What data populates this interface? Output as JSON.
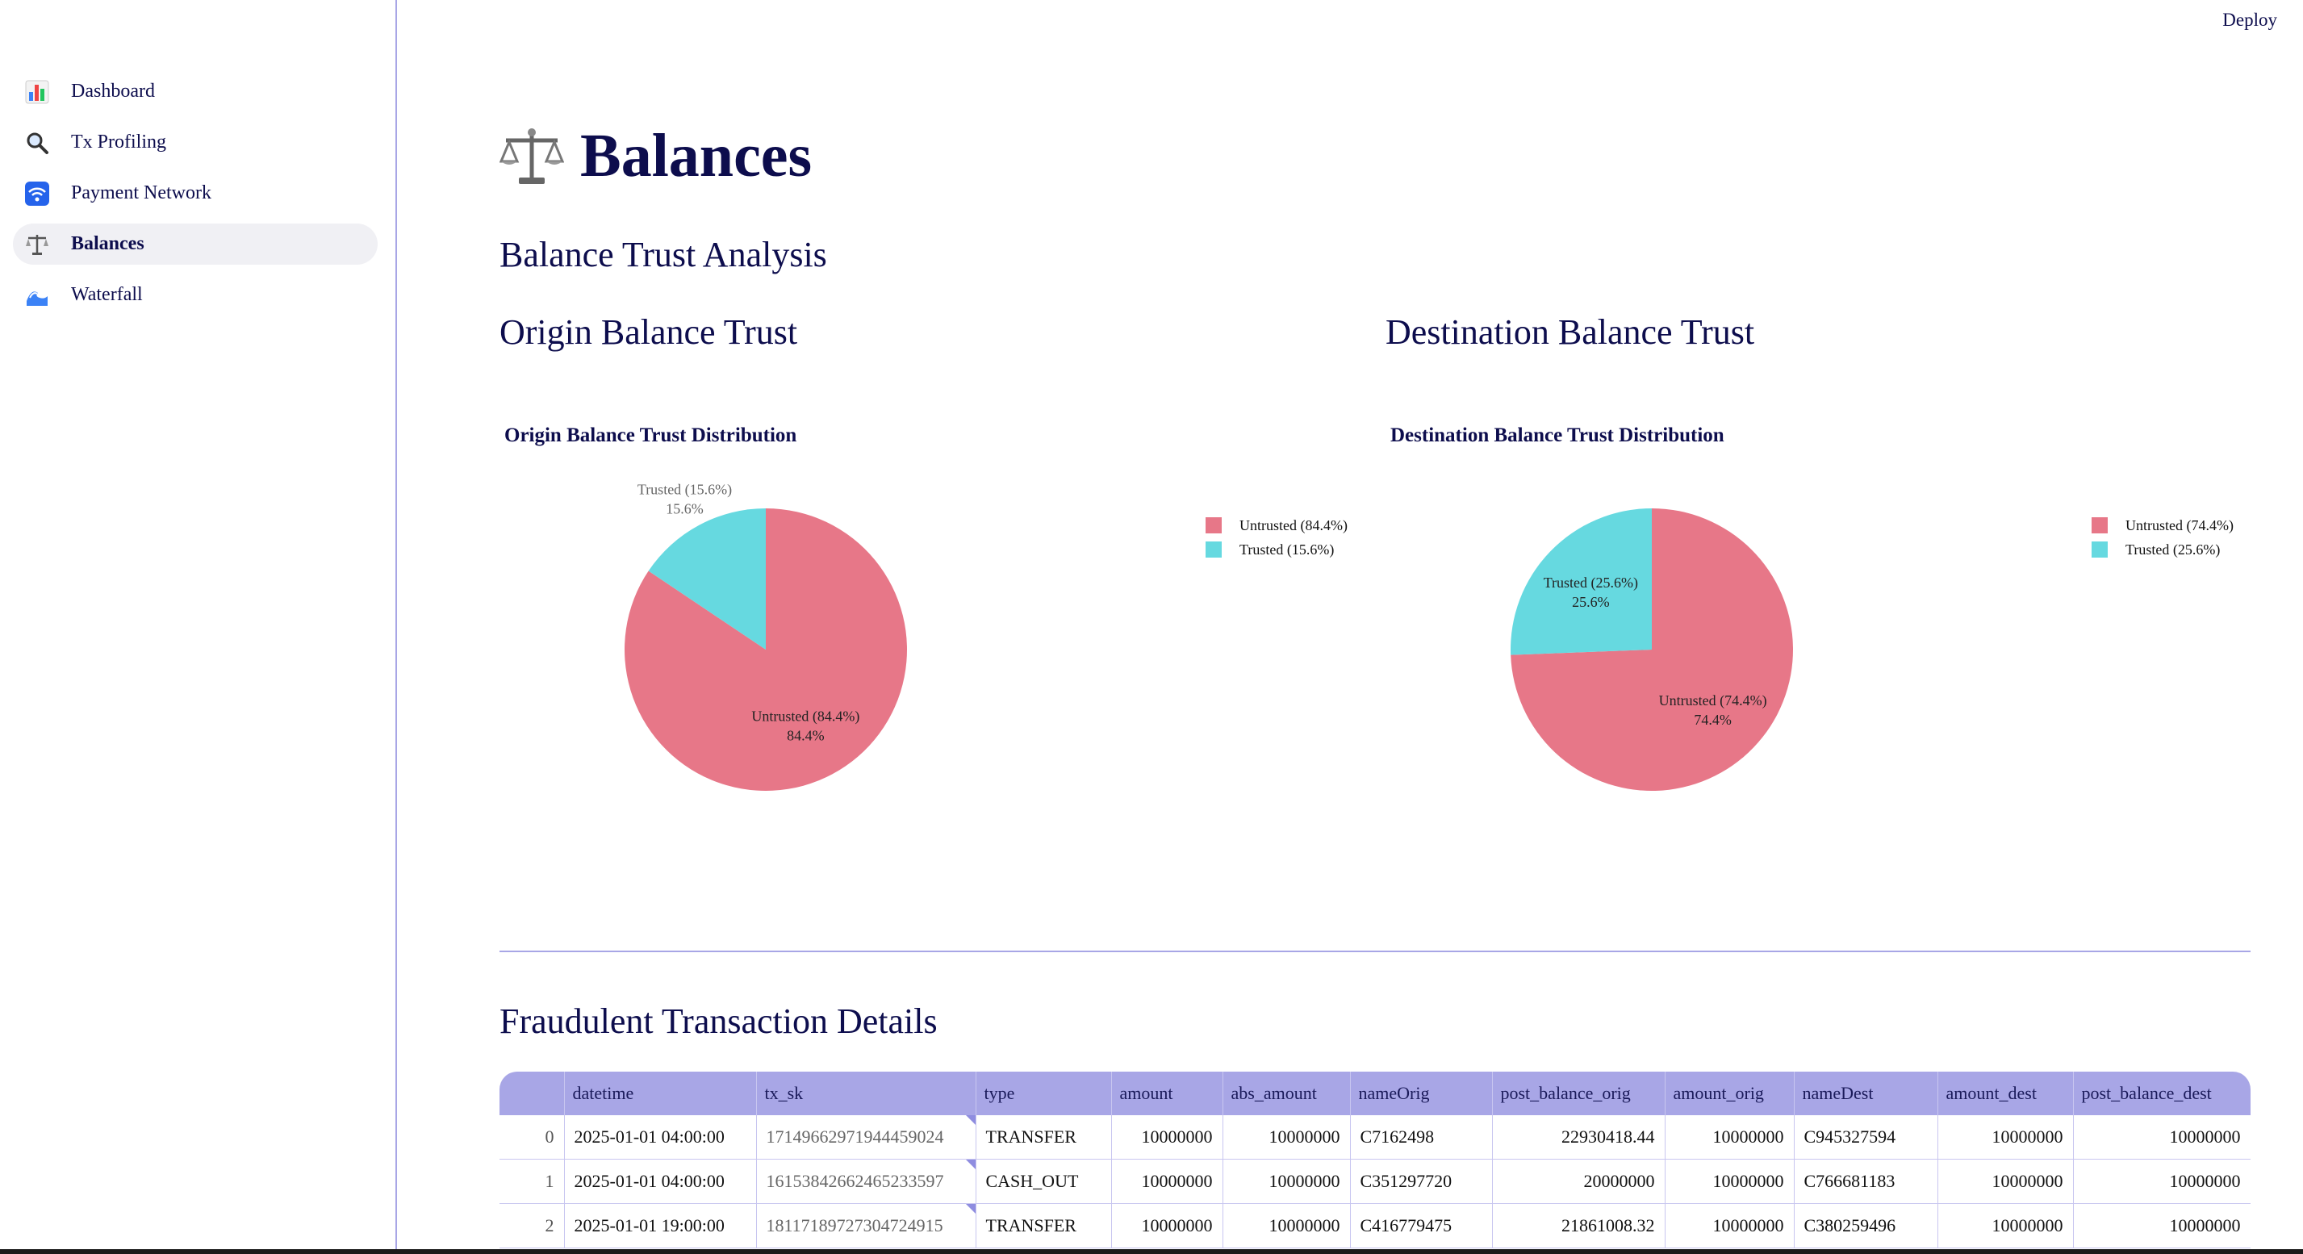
{
  "deploy_label": "Deploy",
  "sidebar": {
    "items": [
      {
        "label": "Dashboard",
        "icon": "bar-chart-icon",
        "active": false
      },
      {
        "label": "Tx Profiling",
        "icon": "magnifier-icon",
        "active": false
      },
      {
        "label": "Payment Network",
        "icon": "wireless-icon",
        "active": false
      },
      {
        "label": "Balances",
        "icon": "scales-icon",
        "active": true
      },
      {
        "label": "Waterfall",
        "icon": "wave-icon",
        "active": false
      }
    ]
  },
  "page": {
    "title": "Balances",
    "subtitle": "Balance Trust Analysis",
    "origin_heading": "Origin Balance Trust",
    "destination_heading": "Destination Balance Trust",
    "table_heading": "Fraudulent Transaction Details"
  },
  "colors": {
    "untrusted": "#e77788",
    "trusted": "#66d9e0",
    "accent": "#a8a6e6",
    "text": "#0d0d4d"
  },
  "chart_data": [
    {
      "type": "pie",
      "title": "Origin Balance Trust Distribution",
      "labels": [
        "Untrusted (84.4%)",
        "Trusted (15.6%)"
      ],
      "values": [
        84.4,
        15.6
      ],
      "pct_labels": [
        "84.4%",
        "15.6%"
      ],
      "legend": [
        "Untrusted (84.4%)",
        "Trusted (15.6%)"
      ],
      "legend_placement": "right"
    },
    {
      "type": "pie",
      "title": "Destination Balance Trust Distribution",
      "labels": [
        "Untrusted (74.4%)",
        "Trusted (25.6%)"
      ],
      "values": [
        74.4,
        25.6
      ],
      "pct_labels": [
        "74.4%",
        "25.6%"
      ],
      "legend": [
        "Untrusted (74.4%)",
        "Trusted (25.6%)"
      ],
      "legend_placement": "right"
    }
  ],
  "table": {
    "columns": [
      "",
      "datetime",
      "tx_sk",
      "type",
      "amount",
      "abs_amount",
      "nameOrig",
      "post_balance_orig",
      "amount_orig",
      "nameDest",
      "amount_dest",
      "post_balance_dest"
    ],
    "rows": [
      [
        "0",
        "2025-01-01 04:00:00",
        "17149662971944459024",
        "TRANSFER",
        "10000000",
        "10000000",
        "C7162498",
        "22930418.44",
        "10000000",
        "C945327594",
        "10000000",
        "10000000"
      ],
      [
        "1",
        "2025-01-01 04:00:00",
        "16153842662465233597",
        "CASH_OUT",
        "10000000",
        "10000000",
        "C351297720",
        "20000000",
        "10000000",
        "C766681183",
        "10000000",
        "10000000"
      ],
      [
        "2",
        "2025-01-01 19:00:00",
        "18117189727304724915",
        "TRANSFER",
        "10000000",
        "10000000",
        "C416779475",
        "21861008.32",
        "10000000",
        "C380259496",
        "10000000",
        "10000000"
      ]
    ]
  }
}
